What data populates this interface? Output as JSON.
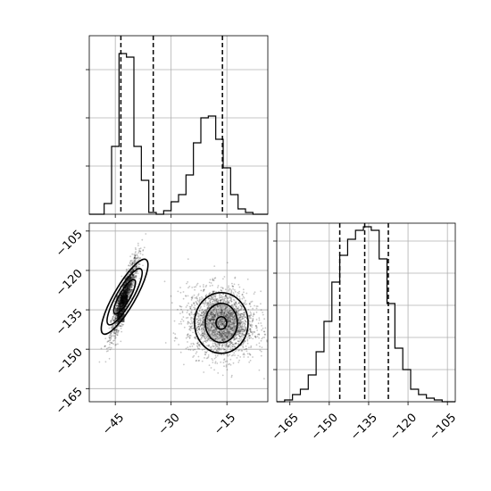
{
  "chart_data": [
    {
      "type": "histogram",
      "panel": "x-marginal",
      "xlim": [
        -52,
        -4
      ],
      "ylim": [
        0,
        1.0
      ],
      "grid": true,
      "bins": [
        -52,
        -50,
        -48,
        -46,
        -44,
        -42,
        -40,
        -38,
        -36,
        -34,
        -32,
        -30,
        -28,
        -26,
        -24,
        -22,
        -20,
        -18,
        -16,
        -14,
        -12,
        -10,
        -8,
        -6,
        -4
      ],
      "counts": [
        0.0,
        0.0,
        0.06,
        0.38,
        0.9,
        0.88,
        0.38,
        0.19,
        0.01,
        0.0,
        0.02,
        0.07,
        0.11,
        0.22,
        0.4,
        0.54,
        0.55,
        0.42,
        0.26,
        0.11,
        0.03,
        0.01,
        0,
        0
      ],
      "quantiles": [
        -43.5,
        -34.8,
        -16.2
      ]
    },
    {
      "type": "scatter",
      "panel": "joint",
      "xlim": [
        -52,
        -4
      ],
      "ylim": [
        -170,
        -102
      ],
      "xticks": [
        -45,
        -30,
        -15
      ],
      "yticks": [
        -105,
        -120,
        -135,
        -150,
        -165
      ],
      "grid": true,
      "clusters": [
        {
          "center": [
            -42.5,
            -130
          ],
          "spread": [
            1.8,
            7.5
          ],
          "correlation": 0.9
        },
        {
          "center": [
            -16.5,
            -140
          ],
          "spread": [
            4.5,
            6.5
          ],
          "correlation": -0.1
        }
      ]
    },
    {
      "type": "histogram",
      "panel": "y-marginal",
      "xlim": [
        -170,
        -102
      ],
      "ylim": [
        0,
        1.0
      ],
      "xticks": [
        -165,
        -150,
        -135,
        -120,
        -105
      ],
      "grid": true,
      "bins": [
        -170,
        -167,
        -164,
        -161,
        -158,
        -155,
        -152,
        -149,
        -146,
        -143,
        -140,
        -137,
        -134,
        -131,
        -128,
        -125,
        -122,
        -119,
        -116,
        -113,
        -110,
        -107,
        -104,
        -102
      ],
      "counts": [
        0.0,
        0.01,
        0.04,
        0.07,
        0.15,
        0.28,
        0.45,
        0.67,
        0.82,
        0.91,
        0.96,
        0.98,
        0.96,
        0.8,
        0.55,
        0.3,
        0.18,
        0.07,
        0.04,
        0.02,
        0.01,
        0,
        0
      ],
      "quantiles": [
        -146,
        -136.5,
        -127.5
      ]
    }
  ]
}
